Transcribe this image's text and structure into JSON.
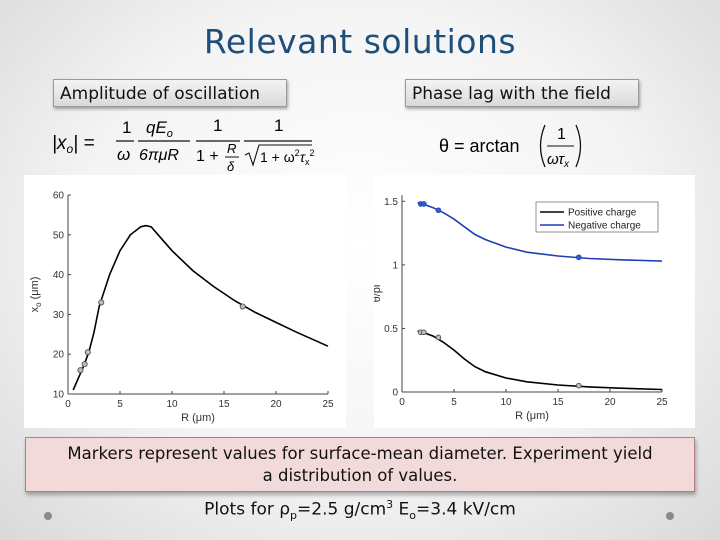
{
  "slide": {
    "title": "Relevant solutions",
    "amplitude_label": "Amplitude of oscillation",
    "phase_label": "Phase lag with the field",
    "note_line1": "Markers represent values for surface-mean diameter. Experiment yield",
    "note_line2": "a distribution of values.",
    "plots_for": {
      "prefix": "Plots for ",
      "rho": "ρ",
      "rho_sub": "p",
      "rho_val": "=2.5 g/cm",
      "rho_exp": "3",
      "e_sym": " E",
      "e_sub": "o",
      "e_val": "=3.4 kV/cm"
    }
  },
  "equation_amp": {
    "lhs": "|x",
    "lhs_sub": "o",
    "lhs_end": "| =",
    "f1_num": "1",
    "f1_den": "ω",
    "f2_num": "qE",
    "f2_num_sub": "o",
    "f2_den": "6πμR",
    "f3_num": "1",
    "f3_den_a": "1 +",
    "f3_den_num": "R",
    "f3_den_den": "δ",
    "f4_num": "1",
    "f4_den": "1 + ω",
    "f4_den_exp": "2",
    "f4_den_tau": "τ",
    "f4_den_tau_sub": "x",
    "f4_den_tau_exp": "2"
  },
  "equation_phase": {
    "lhs": "θ = arctan",
    "num": "1",
    "den": "ωτ",
    "den_sub": "x"
  },
  "chart_data": [
    {
      "type": "line",
      "xlabel": "R (μm)",
      "ylabel": "x",
      "ylabel_sub": "o",
      "ylabel_unit": " (μm)",
      "xlim": [
        0,
        25
      ],
      "ylim": [
        10,
        60
      ],
      "xticks": [
        0,
        5,
        10,
        15,
        20,
        25
      ],
      "yticks": [
        10,
        20,
        30,
        40,
        50,
        60
      ],
      "series": [
        {
          "color": "#000000",
          "x": [
            0.5,
            1,
            1.5,
            2,
            2.5,
            3,
            4,
            5,
            6,
            7,
            7.5,
            8,
            9,
            10,
            12,
            14,
            16,
            18,
            20,
            22,
            25
          ],
          "y": [
            11,
            14,
            17,
            20.5,
            25.5,
            32,
            40,
            46,
            50,
            52,
            52.3,
            52,
            49,
            46,
            41,
            37,
            33.5,
            30.5,
            28,
            25.5,
            22
          ]
        }
      ],
      "markers": {
        "x": [
          1.2,
          1.6,
          1.9,
          3.2,
          16.8
        ],
        "y": [
          16,
          17.5,
          20.5,
          33,
          32
        ]
      }
    },
    {
      "type": "line",
      "xlabel": "R (μm)",
      "ylabel": "θ/pi",
      "xlim": [
        0,
        25
      ],
      "ylim": [
        0,
        1.55
      ],
      "xticks": [
        0,
        5,
        10,
        15,
        20,
        25
      ],
      "yticks": [
        0,
        0.5,
        1,
        1.5
      ],
      "ytick_labels": [
        "0",
        "0.5",
        "1",
        "1.5"
      ],
      "legend": [
        "Positive charge",
        "Negative charge"
      ],
      "legend_position": "top-right",
      "series": [
        {
          "name": "Positive charge",
          "color": "#000000",
          "x": [
            1.5,
            2,
            3,
            4,
            5,
            6,
            7,
            8,
            10,
            12,
            15,
            18,
            21,
            25
          ],
          "y": [
            0.48,
            0.47,
            0.44,
            0.39,
            0.33,
            0.26,
            0.2,
            0.16,
            0.11,
            0.08,
            0.055,
            0.04,
            0.03,
            0.02
          ]
        },
        {
          "name": "Negative charge",
          "color": "#1f3fb5",
          "x": [
            1.5,
            2,
            3,
            4,
            5,
            6,
            7,
            8,
            10,
            12,
            15,
            18,
            21,
            25
          ],
          "y": [
            1.49,
            1.48,
            1.45,
            1.41,
            1.36,
            1.3,
            1.24,
            1.2,
            1.14,
            1.1,
            1.07,
            1.05,
            1.04,
            1.03
          ]
        }
      ],
      "markers_positive": {
        "x": [
          1.8,
          2.1,
          3.5,
          17
        ],
        "y": [
          0.47,
          0.47,
          0.43,
          0.05
        ]
      },
      "markers_negative": {
        "x": [
          1.8,
          2.1,
          3.5,
          17
        ],
        "y": [
          1.48,
          1.48,
          1.43,
          1.06
        ]
      }
    }
  ]
}
